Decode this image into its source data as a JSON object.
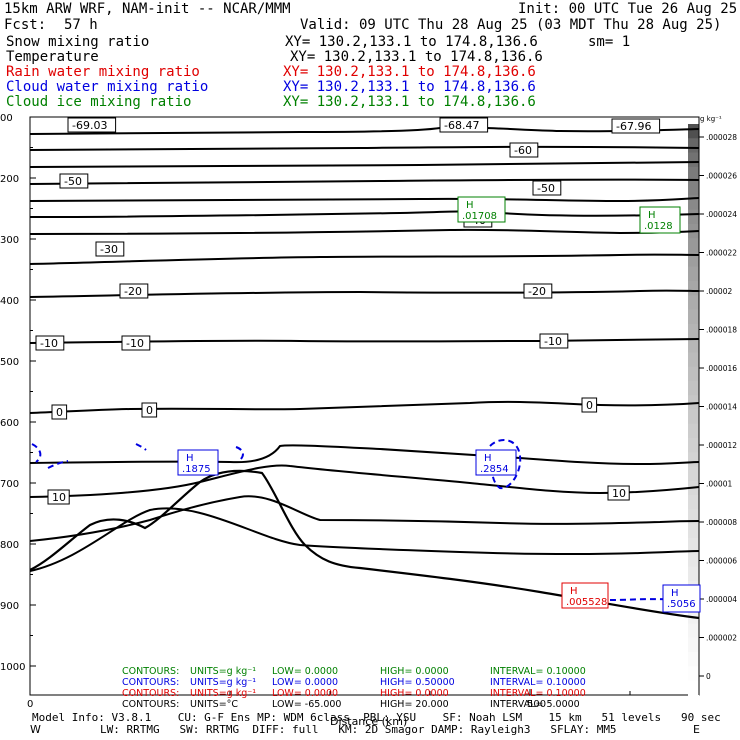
{
  "header": {
    "model": "15km ARW WRF, NAM-init -- NCAR/MMM",
    "init": "Init: 00 UTC Tue 26 Aug 25",
    "fcst_label": "Fcst:",
    "fcst": "57 h",
    "valid": "Valid: 09 UTC Thu 28 Aug 25 (03 MDT Thu 28 Aug 25)",
    "sm": "sm= 1",
    "fields": [
      {
        "name": "Snow mixing ratio",
        "xy": "XY= 130.2,133.1 to 174.8,136.6",
        "color": "#000000"
      },
      {
        "name": "Temperature",
        "xy": "XY= 130.2,133.1 to 174.8,136.6",
        "color": "#000000"
      },
      {
        "name": "Rain water mixing ratio",
        "xy": "XY= 130.2,133.1 to 174.8,136.6",
        "color": "#e00000"
      },
      {
        "name": "Cloud water mixing ratio",
        "xy": "XY= 130.2,133.1 to 174.8,136.6",
        "color": "#0000e0"
      },
      {
        "name": "Cloud ice mixing ratio",
        "xy": "XY= 130.2,133.1 to 174.8,136.6",
        "color": "#008000"
      }
    ]
  },
  "chart_data": {
    "type": "cross-section contour",
    "xlabel": "Distance (km)",
    "x_ticks": [
      0,
      500
    ],
    "x_axis_end_labels": [
      "W",
      "E"
    ],
    "y_ticks": [
      "00",
      "200",
      "300",
      "400",
      "500",
      "600",
      "700",
      "800",
      "900",
      "1000"
    ],
    "y_tick_pressures": [
      100,
      200,
      300,
      400,
      500,
      600,
      700,
      800,
      900,
      1000
    ],
    "colorbar": {
      "unit": "g kg⁻¹",
      "ticks": [
        ".000028",
        ".000026",
        ".000024",
        ".000022",
        ".00002",
        ".000018",
        ".000016",
        ".000014",
        ".000012",
        ".00001",
        ".000008",
        ".000006",
        ".000004",
        ".000002",
        "0"
      ]
    },
    "temperature_labels": [
      "-69.03",
      "-68.47",
      "-67.96",
      "-60",
      "-50",
      "-50",
      "-40",
      "-30",
      "-20",
      "-20",
      "-10",
      "-10",
      "-10",
      "0",
      "0",
      "0",
      "10",
      "10"
    ],
    "extrema_boxes": [
      {
        "field": "cloud ice",
        "letter": "H",
        "value": ".01708",
        "color": "#008000"
      },
      {
        "field": "cloud ice",
        "letter": "H",
        "value": ".0128",
        "color": "#008000"
      },
      {
        "field": "cloud water",
        "letter": "H",
        "value": ".1875",
        "color": "#0000e0"
      },
      {
        "field": "cloud water",
        "letter": "H",
        "value": ".2854",
        "color": "#0000e0"
      },
      {
        "field": "cloud water",
        "letter": "H",
        "value": ".5056",
        "color": "#0000e0"
      },
      {
        "field": "rain water",
        "letter": "H",
        "value": ".005528",
        "color": "#e00000"
      }
    ],
    "contour_info": [
      {
        "prefix": "CONTOURS:",
        "units": "UNITS=g kg⁻¹",
        "low": "LOW= 0.0000",
        "high": "HIGH= 0.0000",
        "interval": "INTERVAL= 0.10000",
        "color": "#008000"
      },
      {
        "prefix": "CONTOURS:",
        "units": "UNITS=g kg⁻¹",
        "low": "LOW= 0.0000",
        "high": "HIGH= 0.50000",
        "interval": "INTERVAL= 0.10000",
        "color": "#0000e0"
      },
      {
        "prefix": "CONTOURS:",
        "units": "UNITS=g kg⁻¹",
        "low": "LOW= 0.0000",
        "high": "HIGH= 0.0000",
        "interval": "INTERVAL= 0.10000",
        "color": "#e00000"
      },
      {
        "prefix": "CONTOURS:",
        "units": "UNITS=°C",
        "low": "LOW= -65.000",
        "high": "HIGH= 20.000",
        "interval": "INTERVAL= 5.0000",
        "color": "#000000"
      }
    ]
  },
  "footer": {
    "line1": "Model Info: V3.8.1    CU: G-F Ens MP: WDM 6class  PBL: YSU    SF: Noah LSM    15 km   51 levels   90 sec",
    "line2": "LW: RRTMG   SW: RRTMG  DIFF: full   KM: 2D Smagor DAMP: Rayleigh3   SFLAY: MM5"
  }
}
